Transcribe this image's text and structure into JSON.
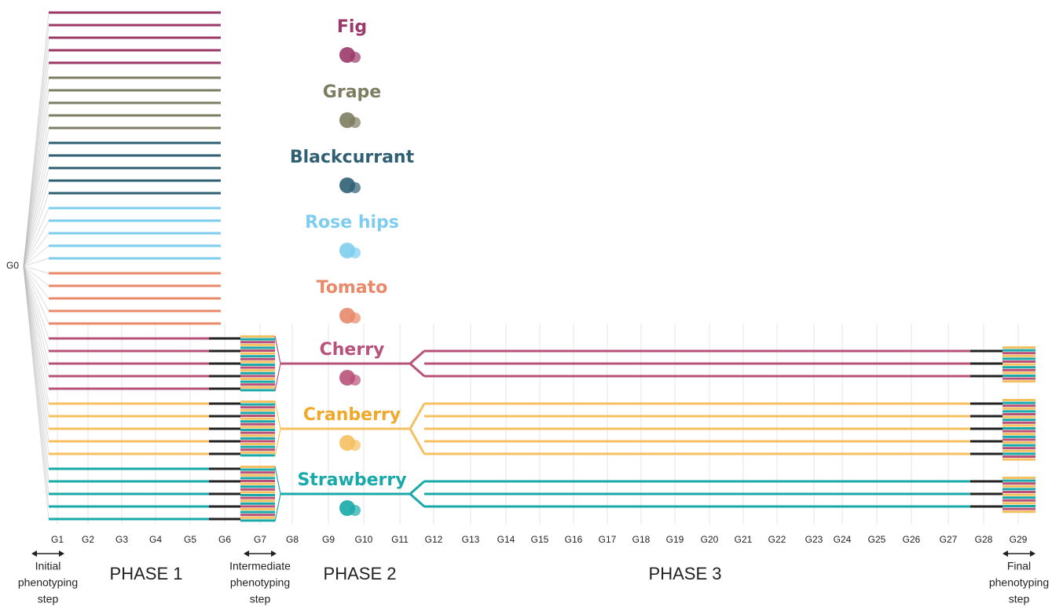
{
  "origin": "G0",
  "generations": [
    "G1",
    "G2",
    "G3",
    "G4",
    "G5",
    "G6",
    "G7",
    "G8",
    "G9",
    "G10",
    "G11",
    "G12",
    "G13",
    "G14",
    "G15",
    "G16",
    "G17",
    "G18",
    "G19",
    "G20",
    "G21",
    "G22",
    "G23",
    "G24",
    "G25",
    "G26",
    "G27",
    "G28",
    "G29"
  ],
  "fruits": [
    {
      "name": "Fig",
      "color": "#9b3a6a"
    },
    {
      "name": "Grape",
      "color": "#7d7d62"
    },
    {
      "name": "Blackcurrant",
      "color": "#2e5f73"
    },
    {
      "name": "Rose hips",
      "color": "#7ecdf0"
    },
    {
      "name": "Tomato",
      "color": "#e8896a"
    },
    {
      "name": "Cherry",
      "color": "#b8527a"
    },
    {
      "name": "Cranberry",
      "color": "#f5c060"
    },
    {
      "name": "Strawberry",
      "color": "#1aa9a9"
    }
  ],
  "phases": [
    "PHASE 1",
    "PHASE 2",
    "PHASE 3"
  ],
  "steps": [
    {
      "lines": [
        "Initial",
        "phenotyping",
        "step"
      ]
    },
    {
      "lines": [
        "Intermediate",
        "phenotyping",
        "step"
      ]
    },
    {
      "lines": [
        "Final",
        "phenotyping",
        "step"
      ]
    }
  ]
}
